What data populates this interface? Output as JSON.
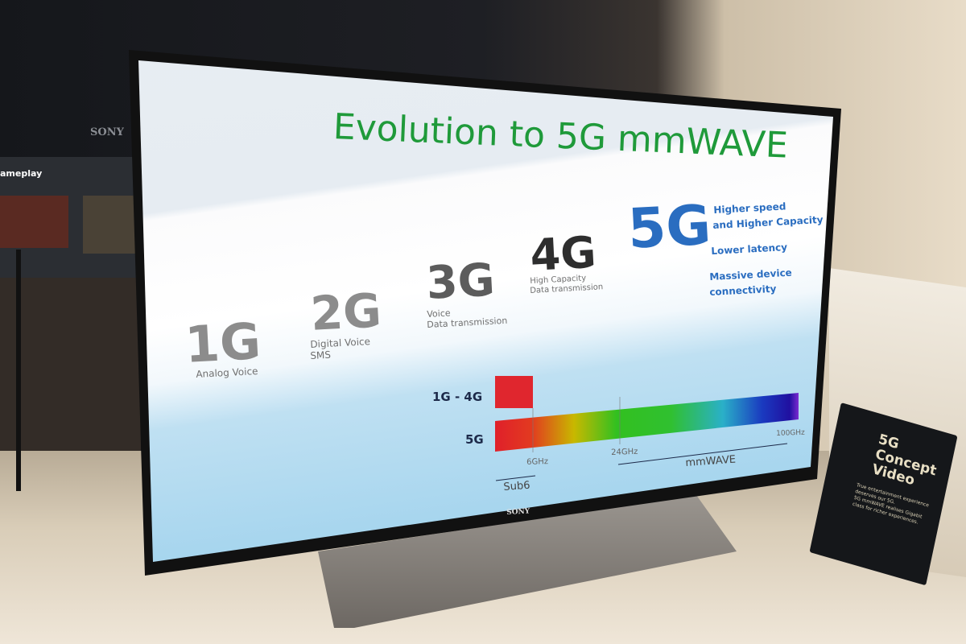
{
  "background": {
    "booth_brand": "SONY",
    "booth_sign": "ameplay"
  },
  "slide": {
    "title": "Evolution to 5G mmWAVE",
    "title_color": "#1f9a3a",
    "generations": [
      {
        "label": "1G",
        "lines": [
          "Analog Voice"
        ]
      },
      {
        "label": "2G",
        "lines": [
          "Digital Voice",
          "SMS"
        ]
      },
      {
        "label": "3G",
        "lines": [
          "Voice",
          "Data transmission"
        ]
      },
      {
        "label": "4G",
        "lines": [
          "High Capacity",
          "Data transmission"
        ]
      },
      {
        "label": "5G",
        "color": "#2a6dc0"
      }
    ],
    "features_5g": [
      "Higher speed",
      "and Higher Capacity",
      "Lower latency",
      "Massive device",
      "connectivity"
    ],
    "spectrum": {
      "row_1g4g": "1G - 4G",
      "row_5g": "5G",
      "labels": {
        "f6": "6GHz",
        "f24": "24GHz",
        "f100": "100GHz"
      },
      "ranges": {
        "sub6": "Sub6",
        "mmwave": "mmWAVE"
      }
    }
  },
  "tv": {
    "brand": "SONY"
  },
  "sign": {
    "title_lines": [
      "5G",
      "Concept",
      "Video"
    ],
    "body_lines": [
      "True entertainment experience",
      "deserves our 5G.",
      "5G mmWAVE realises Gigabit",
      "class for richer experiences."
    ]
  }
}
